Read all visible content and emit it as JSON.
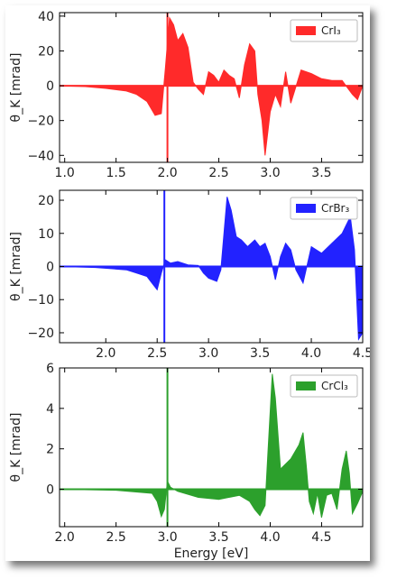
{
  "chart_data": [
    {
      "type": "area",
      "series": [
        {
          "name": "CrI₃",
          "color": "#ff2a2a"
        }
      ],
      "ylabel": "θ_K [mrad]",
      "xlim": [
        0.95,
        3.9
      ],
      "ylim": [
        -44,
        42
      ],
      "xticks": [
        1.0,
        1.5,
        2.0,
        2.5,
        3.0,
        3.5
      ],
      "xtick_labels": [
        "1.0",
        "1.5",
        "2.0",
        "2.5",
        "3.0",
        "3.5"
      ],
      "yticks": [
        -40,
        -20,
        0,
        20,
        40
      ],
      "ytick_labels": [
        "−40",
        "−20",
        "0",
        "20",
        "40"
      ],
      "vline": 2.0,
      "x": [
        0.95,
        1.2,
        1.4,
        1.6,
        1.7,
        1.8,
        1.88,
        1.94,
        1.98,
        2.02,
        2.06,
        2.1,
        2.15,
        2.2,
        2.25,
        2.3,
        2.35,
        2.4,
        2.45,
        2.5,
        2.55,
        2.6,
        2.65,
        2.7,
        2.75,
        2.8,
        2.85,
        2.88,
        2.92,
        2.95,
        3.0,
        3.05,
        3.1,
        3.15,
        3.2,
        3.3,
        3.4,
        3.5,
        3.6,
        3.7,
        3.8,
        3.85,
        3.9
      ],
      "y": [
        0,
        -0.5,
        -1.5,
        -3,
        -5,
        -9,
        -17,
        -16,
        10,
        39,
        35,
        26,
        30,
        22,
        2,
        -2,
        -5,
        8,
        6,
        2,
        9,
        6,
        4,
        -7,
        12,
        24,
        20,
        -5,
        -20,
        -40,
        -15,
        -5,
        -12,
        8,
        -10,
        9,
        7,
        4,
        3,
        3,
        -5,
        -8,
        0
      ]
    },
    {
      "type": "area",
      "series": [
        {
          "name": "CrBr₃",
          "color": "#2222ff"
        }
      ],
      "ylabel": "θ_K [mrad]",
      "xlim": [
        1.55,
        4.5
      ],
      "ylim": [
        -23,
        23
      ],
      "xticks": [
        2.0,
        2.5,
        3.0,
        3.5,
        4.0,
        4.5
      ],
      "xtick_labels": [
        "2.0",
        "2.5",
        "3.0",
        "3.5",
        "4.0",
        "4.5"
      ],
      "yticks": [
        -20,
        -10,
        0,
        10,
        20
      ],
      "ytick_labels": [
        "−20",
        "−10",
        "0",
        "10",
        "20"
      ],
      "vline": 2.57,
      "x": [
        1.55,
        1.9,
        2.2,
        2.3,
        2.4,
        2.45,
        2.5,
        2.54,
        2.58,
        2.63,
        2.7,
        2.8,
        2.9,
        2.95,
        3.0,
        3.08,
        3.12,
        3.18,
        3.22,
        3.27,
        3.32,
        3.38,
        3.45,
        3.5,
        3.55,
        3.6,
        3.65,
        3.7,
        3.75,
        3.8,
        3.85,
        3.92,
        4.0,
        4.1,
        4.2,
        4.3,
        4.38,
        4.42,
        4.46,
        4.5
      ],
      "y": [
        0,
        -0.3,
        -1,
        -2,
        -3,
        -5,
        -7,
        -2,
        2,
        1,
        1.5,
        0.5,
        0.3,
        -2,
        -3.5,
        -4.5,
        -1,
        21,
        17,
        9,
        8,
        6,
        8,
        6,
        7,
        3,
        -4,
        3,
        7,
        5,
        -1,
        -5,
        6,
        4,
        7,
        10,
        15,
        5,
        -22,
        -20
      ]
    },
    {
      "type": "area",
      "series": [
        {
          "name": "CrCl₃",
          "color": "#2ca02c"
        }
      ],
      "ylabel": "θ_K [mrad]",
      "xlabel": "Energy [eV]",
      "xlim": [
        1.95,
        4.9
      ],
      "ylim": [
        -1.85,
        6.0
      ],
      "xticks": [
        2.0,
        2.5,
        3.0,
        3.5,
        4.0,
        4.5
      ],
      "xtick_labels": [
        "2.0",
        "2.5",
        "3.0",
        "3.5",
        "4.0",
        "4.5"
      ],
      "yticks": [
        0,
        2,
        4,
        6
      ],
      "ytick_labels": [
        "0",
        "2",
        "4",
        "6"
      ],
      "vline": 3.0,
      "x": [
        1.95,
        2.5,
        2.85,
        2.9,
        2.94,
        2.97,
        3.0,
        3.03,
        3.1,
        3.3,
        3.5,
        3.7,
        3.8,
        3.85,
        3.9,
        3.95,
        3.98,
        4.02,
        4.05,
        4.1,
        4.2,
        4.28,
        4.32,
        4.35,
        4.38,
        4.42,
        4.46,
        4.5,
        4.55,
        4.6,
        4.65,
        4.7,
        4.74,
        4.77,
        4.8,
        4.85,
        4.9
      ],
      "y": [
        0,
        -0.05,
        -0.2,
        -0.6,
        -1.35,
        -1.0,
        0.4,
        0.1,
        -0.1,
        -0.4,
        -0.5,
        -0.3,
        -0.6,
        -1.0,
        -1.3,
        -0.8,
        2.0,
        5.7,
        4.5,
        1.0,
        1.5,
        2.2,
        2.8,
        1.2,
        -0.6,
        -1.2,
        -0.2,
        -1.4,
        -0.3,
        -0.2,
        -1.0,
        1.0,
        1.9,
        0.8,
        -1.2,
        -0.7,
        -0.1
      ]
    }
  ]
}
